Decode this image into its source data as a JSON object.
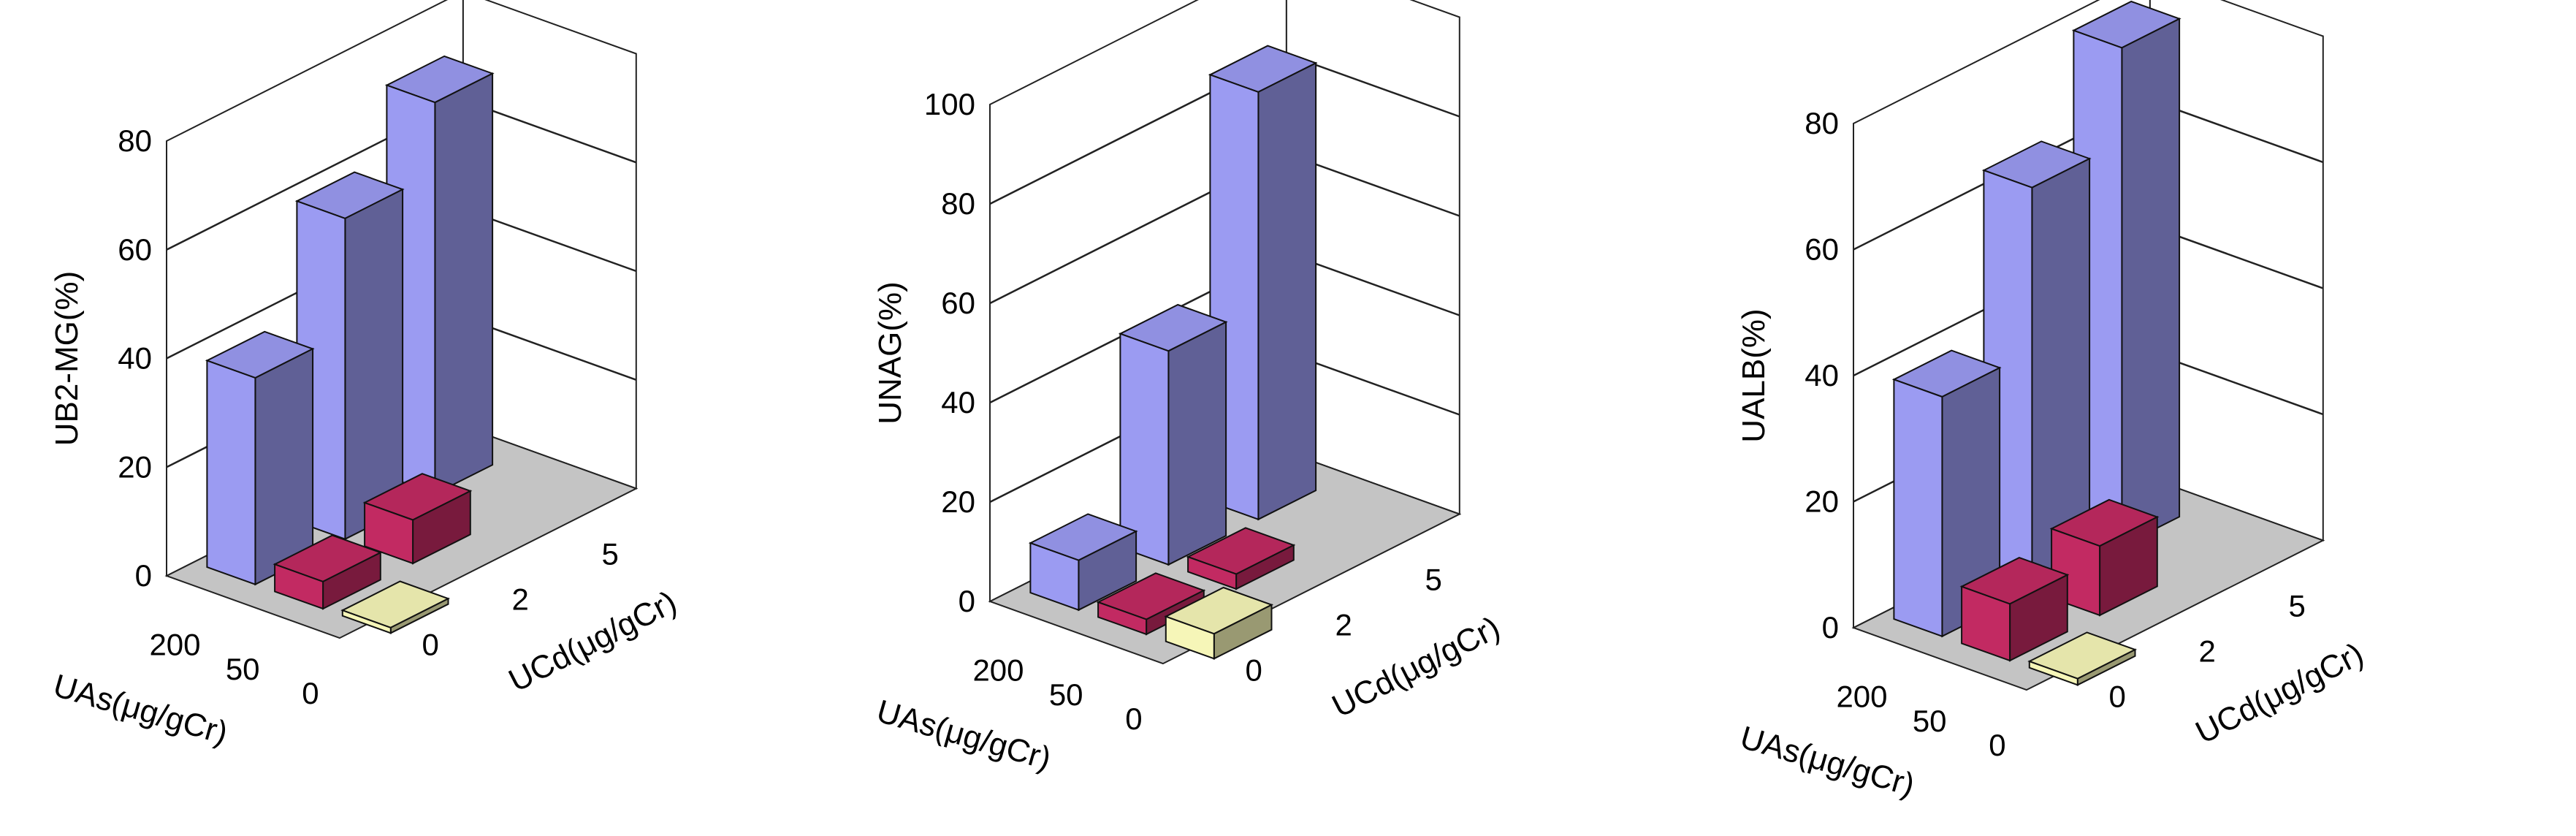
{
  "chart_data": [
    {
      "type": "bar3d",
      "zlabel": "UB2-MG(%)",
      "xlabel": "UAs(μg/gCr)",
      "ylabel": "UCd(μg/gCr)",
      "zlim": [
        0,
        80
      ],
      "zticks": [
        "0",
        "20",
        "40",
        "60",
        "80"
      ],
      "x_categories": [
        "200",
        "50",
        "0"
      ],
      "y_categories": [
        "0",
        "2",
        "5"
      ],
      "colors": {
        "200": "#9b9bf2",
        "50": "#c22a62",
        "0": "#f6f6b8"
      },
      "bars": [
        {
          "x": "200",
          "y": "0",
          "value": 38
        },
        {
          "x": "200",
          "y": "2",
          "value": 59
        },
        {
          "x": "200",
          "y": "5",
          "value": 72
        },
        {
          "x": "50",
          "y": "0",
          "value": 5
        },
        {
          "x": "50",
          "y": "2",
          "value": 8
        },
        {
          "x": "0",
          "y": "0",
          "value": 1
        }
      ],
      "grid": true
    },
    {
      "type": "bar3d",
      "zlabel": "UNAG(%)",
      "xlabel": "UAs(μg/gCr)",
      "ylabel": "UCd(μg/gCr)",
      "zlim": [
        0,
        100
      ],
      "zticks": [
        "0",
        "20",
        "40",
        "60",
        "80",
        "100"
      ],
      "x_categories": [
        "200",
        "50",
        "0"
      ],
      "y_categories": [
        "0",
        "2",
        "5"
      ],
      "colors": {
        "200": "#9b9bf2",
        "50": "#c22a62",
        "0": "#f6f6b8"
      },
      "bars": [
        {
          "x": "200",
          "y": "0",
          "value": 10
        },
        {
          "x": "200",
          "y": "2",
          "value": 43
        },
        {
          "x": "200",
          "y": "5",
          "value": 86
        },
        {
          "x": "50",
          "y": "0",
          "value": 3
        },
        {
          "x": "50",
          "y": "2",
          "value": 3
        },
        {
          "x": "0",
          "y": "0",
          "value": 5
        }
      ],
      "grid": true
    },
    {
      "type": "bar3d",
      "zlabel": "UALB(%)",
      "xlabel": "UAs(μg/gCr)",
      "ylabel": "UCd(μg/gCr)",
      "zlim": [
        0,
        80
      ],
      "zticks": [
        "0",
        "20",
        "40",
        "60",
        "80"
      ],
      "x_categories": [
        "200",
        "50",
        "0"
      ],
      "y_categories": [
        "0",
        "2",
        "5"
      ],
      "colors": {
        "200": "#9b9bf2",
        "50": "#c22a62",
        "0": "#f6f6b8"
      },
      "bars": [
        {
          "x": "200",
          "y": "0",
          "value": 38
        },
        {
          "x": "200",
          "y": "2",
          "value": 64
        },
        {
          "x": "200",
          "y": "5",
          "value": 79
        },
        {
          "x": "50",
          "y": "0",
          "value": 9
        },
        {
          "x": "50",
          "y": "2",
          "value": 11
        },
        {
          "x": "0",
          "y": "0",
          "value": 1
        }
      ],
      "grid": true
    }
  ]
}
